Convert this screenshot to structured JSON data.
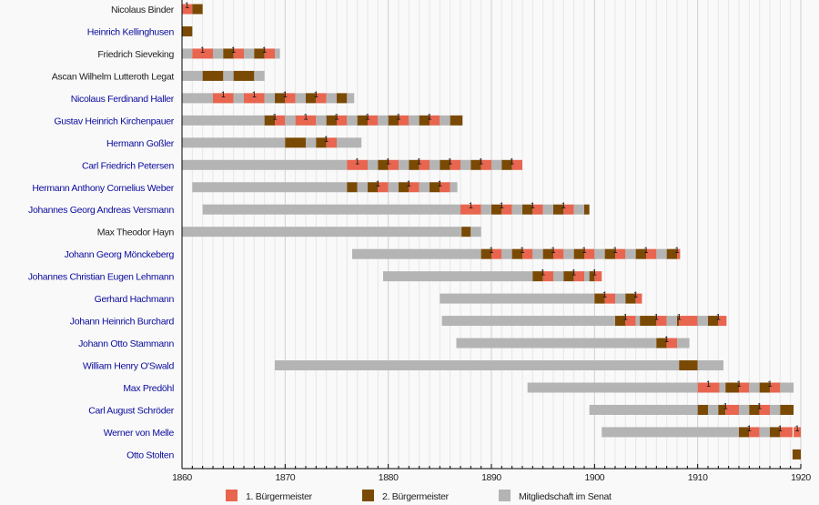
{
  "chart_data": {
    "type": "timeline",
    "title": "",
    "xlim": [
      1860,
      1920
    ],
    "x_ticks": [
      1860,
      1870,
      1880,
      1890,
      1900,
      1910,
      1920
    ],
    "grid": "vertical lines every year",
    "legend": {
      "placement": "bottom",
      "entries": [
        {
          "key": "first",
          "label": "1. Bürgermeister",
          "color": "#e8654f"
        },
        {
          "key": "second",
          "label": "2. Bürgermeister",
          "color": "#7a4a04"
        },
        {
          "key": "senate",
          "label": "Mitgliedschaft im Senat",
          "color": "#b4b4b4"
        }
      ]
    },
    "marker_label": "1",
    "rows": [
      {
        "name": "Nicolaus Binder",
        "link": false,
        "segments": [
          [
            "first",
            1860,
            1861
          ],
          [
            "second",
            1861,
            1862
          ]
        ]
      },
      {
        "name": "Heinrich Kellinghusen",
        "link": true,
        "segments": [
          [
            "second",
            1860,
            1861
          ]
        ]
      },
      {
        "name": "Friedrich Sieveking",
        "link": false,
        "segments": [
          [
            "senate",
            1860,
            1861
          ],
          [
            "first",
            1861,
            1863
          ],
          [
            "senate",
            1863,
            1864
          ],
          [
            "second",
            1864,
            1865
          ],
          [
            "first",
            1865,
            1866
          ],
          [
            "senate",
            1866,
            1867
          ],
          [
            "second",
            1867,
            1868
          ],
          [
            "first",
            1868,
            1869
          ],
          [
            "senate",
            1869,
            1869.5
          ]
        ]
      },
      {
        "name": "Ascan Wilhelm Lutteroth Legat",
        "link": false,
        "segments": [
          [
            "senate",
            1860,
            1862
          ],
          [
            "second",
            1862,
            1864
          ],
          [
            "senate",
            1864,
            1865
          ],
          [
            "second",
            1865,
            1867
          ],
          [
            "senate",
            1867,
            1868
          ]
        ]
      },
      {
        "name": "Nicolaus Ferdinand Haller",
        "link": true,
        "segments": [
          [
            "senate",
            1860,
            1863
          ],
          [
            "first",
            1863,
            1865
          ],
          [
            "senate",
            1865,
            1866
          ],
          [
            "first",
            1866,
            1868
          ],
          [
            "senate",
            1868,
            1869
          ],
          [
            "second",
            1869,
            1870
          ],
          [
            "first",
            1870,
            1871
          ],
          [
            "senate",
            1871,
            1872
          ],
          [
            "second",
            1872,
            1873
          ],
          [
            "first",
            1873,
            1874
          ],
          [
            "senate",
            1874,
            1875
          ],
          [
            "second",
            1875,
            1876
          ],
          [
            "senate",
            1876,
            1876.7
          ]
        ]
      },
      {
        "name": "Gustav Heinrich Kirchenpauer",
        "link": true,
        "segments": [
          [
            "senate",
            1860,
            1868
          ],
          [
            "second",
            1868,
            1869
          ],
          [
            "first",
            1869,
            1870
          ],
          [
            "senate",
            1870,
            1871
          ],
          [
            "first",
            1871,
            1873
          ],
          [
            "senate",
            1873,
            1874
          ],
          [
            "second",
            1874,
            1875
          ],
          [
            "first",
            1875,
            1876
          ],
          [
            "senate",
            1876,
            1877
          ],
          [
            "second",
            1877,
            1878
          ],
          [
            "first",
            1878,
            1879
          ],
          [
            "senate",
            1879,
            1880
          ],
          [
            "second",
            1880,
            1881
          ],
          [
            "first",
            1881,
            1882
          ],
          [
            "senate",
            1882,
            1883
          ],
          [
            "second",
            1883,
            1884
          ],
          [
            "first",
            1884,
            1885
          ],
          [
            "senate",
            1885,
            1886
          ],
          [
            "second",
            1886,
            1887.2
          ]
        ]
      },
      {
        "name": "Hermann Goßler",
        "link": true,
        "segments": [
          [
            "senate",
            1860,
            1870
          ],
          [
            "second",
            1870,
            1872
          ],
          [
            "senate",
            1872,
            1873
          ],
          [
            "second",
            1873,
            1874
          ],
          [
            "first",
            1874,
            1875
          ],
          [
            "senate",
            1875,
            1877.4
          ]
        ]
      },
      {
        "name": "Carl Friedrich Petersen",
        "link": true,
        "segments": [
          [
            "senate",
            1860,
            1876
          ],
          [
            "first",
            1876,
            1878
          ],
          [
            "senate",
            1878,
            1879
          ],
          [
            "second",
            1879,
            1880
          ],
          [
            "first",
            1880,
            1881
          ],
          [
            "senate",
            1881,
            1882
          ],
          [
            "second",
            1882,
            1883
          ],
          [
            "first",
            1883,
            1884
          ],
          [
            "senate",
            1884,
            1885
          ],
          [
            "second",
            1885,
            1886
          ],
          [
            "first",
            1886,
            1887
          ],
          [
            "senate",
            1887,
            1888
          ],
          [
            "second",
            1888,
            1889
          ],
          [
            "first",
            1889,
            1890
          ],
          [
            "senate",
            1890,
            1891
          ],
          [
            "second",
            1891,
            1892
          ],
          [
            "first",
            1892,
            1893
          ]
        ]
      },
      {
        "name": "Hermann Anthony Cornelius Weber",
        "link": true,
        "segments": [
          [
            "senate",
            1861,
            1876
          ],
          [
            "second",
            1876,
            1877
          ],
          [
            "senate",
            1877,
            1878
          ],
          [
            "second",
            1878,
            1879
          ],
          [
            "first",
            1879,
            1880
          ],
          [
            "senate",
            1880,
            1881
          ],
          [
            "second",
            1881,
            1882
          ],
          [
            "first",
            1882,
            1883
          ],
          [
            "senate",
            1883,
            1884
          ],
          [
            "second",
            1884,
            1885
          ],
          [
            "first",
            1885,
            1886
          ],
          [
            "senate",
            1886,
            1886.7
          ]
        ]
      },
      {
        "name": "Johannes Georg Andreas Versmann",
        "link": true,
        "segments": [
          [
            "senate",
            1862,
            1887
          ],
          [
            "first",
            1887,
            1889
          ],
          [
            "senate",
            1889,
            1890
          ],
          [
            "second",
            1890,
            1891
          ],
          [
            "first",
            1891,
            1892
          ],
          [
            "senate",
            1892,
            1893
          ],
          [
            "second",
            1893,
            1894
          ],
          [
            "first",
            1894,
            1895
          ],
          [
            "senate",
            1895,
            1896
          ],
          [
            "second",
            1896,
            1897
          ],
          [
            "first",
            1897,
            1898
          ],
          [
            "senate",
            1898,
            1899
          ],
          [
            "second",
            1899,
            1899.5
          ]
        ]
      },
      {
        "name": "Max Theodor Hayn",
        "link": false,
        "segments": [
          [
            "senate",
            1860,
            1887.1
          ],
          [
            "second",
            1887.1,
            1888
          ],
          [
            "senate",
            1888,
            1889
          ]
        ]
      },
      {
        "name": "Johann Georg Mönckeberg",
        "link": true,
        "segments": [
          [
            "senate",
            1876.5,
            1889
          ],
          [
            "second",
            1889,
            1890
          ],
          [
            "first",
            1890,
            1891
          ],
          [
            "senate",
            1891,
            1892
          ],
          [
            "second",
            1892,
            1893
          ],
          [
            "first",
            1893,
            1894
          ],
          [
            "senate",
            1894,
            1895
          ],
          [
            "second",
            1895,
            1896
          ],
          [
            "first",
            1896,
            1897
          ],
          [
            "senate",
            1897,
            1898
          ],
          [
            "second",
            1898,
            1899
          ],
          [
            "first",
            1899,
            1900
          ],
          [
            "senate",
            1900,
            1901
          ],
          [
            "second",
            1901,
            1902
          ],
          [
            "first",
            1902,
            1903
          ],
          [
            "senate",
            1903,
            1904
          ],
          [
            "second",
            1904,
            1905
          ],
          [
            "first",
            1905,
            1906
          ],
          [
            "senate",
            1906,
            1907
          ],
          [
            "second",
            1907,
            1908
          ],
          [
            "first",
            1908,
            1908.3
          ]
        ]
      },
      {
        "name": "Johannes Christian Eugen Lehmann",
        "link": true,
        "segments": [
          [
            "senate",
            1879.5,
            1894
          ],
          [
            "second",
            1894,
            1895
          ],
          [
            "first",
            1895,
            1896
          ],
          [
            "senate",
            1896,
            1897
          ],
          [
            "second",
            1897,
            1898
          ],
          [
            "first",
            1898,
            1899
          ],
          [
            "senate",
            1899,
            1899.5
          ],
          [
            "second",
            1899.5,
            1900
          ],
          [
            "first",
            1900,
            1900.7
          ]
        ]
      },
      {
        "name": "Gerhard Hachmann",
        "link": true,
        "segments": [
          [
            "senate",
            1885,
            1900
          ],
          [
            "second",
            1900,
            1901
          ],
          [
            "first",
            1901,
            1902
          ],
          [
            "senate",
            1902,
            1903
          ],
          [
            "second",
            1903,
            1904
          ],
          [
            "first",
            1904,
            1904.6
          ]
        ]
      },
      {
        "name": "Johann Heinrich Burchard",
        "link": true,
        "segments": [
          [
            "senate",
            1885.2,
            1902
          ],
          [
            "second",
            1902,
            1903
          ],
          [
            "first",
            1903,
            1904
          ],
          [
            "senate",
            1904,
            1904.4
          ],
          [
            "second",
            1904.4,
            1906
          ],
          [
            "first",
            1906,
            1907
          ],
          [
            "senate",
            1907,
            1908
          ],
          [
            "second",
            1908,
            1908.2
          ],
          [
            "first",
            1908.2,
            1910
          ],
          [
            "senate",
            1910,
            1911
          ],
          [
            "second",
            1911,
            1912
          ],
          [
            "first",
            1912,
            1912.8
          ]
        ]
      },
      {
        "name": "Johann Otto Stammann",
        "link": true,
        "segments": [
          [
            "senate",
            1886.6,
            1906
          ],
          [
            "second",
            1906,
            1907
          ],
          [
            "first",
            1907,
            1908
          ],
          [
            "senate",
            1908,
            1909.2
          ]
        ]
      },
      {
        "name": "William Henry O'Swald",
        "link": true,
        "segments": [
          [
            "senate",
            1869,
            1908.2
          ],
          [
            "second",
            1908.2,
            1910
          ],
          [
            "senate",
            1910,
            1912.5
          ]
        ]
      },
      {
        "name": "Max Predöhl",
        "link": true,
        "segments": [
          [
            "senate",
            1893.5,
            1910
          ],
          [
            "first",
            1910,
            1912.1
          ],
          [
            "senate",
            1912.1,
            1912.7
          ],
          [
            "second",
            1912.7,
            1914
          ],
          [
            "first",
            1914,
            1915
          ],
          [
            "senate",
            1915,
            1916
          ],
          [
            "second",
            1916,
            1917
          ],
          [
            "first",
            1917,
            1918
          ],
          [
            "senate",
            1918,
            1919.3
          ]
        ]
      },
      {
        "name": "Carl August Schröder",
        "link": true,
        "segments": [
          [
            "senate",
            1899.5,
            1910
          ],
          [
            "second",
            1910,
            1911
          ],
          [
            "senate",
            1911,
            1912
          ],
          [
            "second",
            1912,
            1912.7
          ],
          [
            "first",
            1912.7,
            1914
          ],
          [
            "senate",
            1914,
            1915
          ],
          [
            "second",
            1915,
            1916
          ],
          [
            "first",
            1916,
            1917
          ],
          [
            "senate",
            1917,
            1918
          ],
          [
            "second",
            1918,
            1919.3
          ]
        ]
      },
      {
        "name": "Werner von Melle",
        "link": true,
        "segments": [
          [
            "senate",
            1900.7,
            1914
          ],
          [
            "second",
            1914,
            1915
          ],
          [
            "first",
            1915,
            1916
          ],
          [
            "senate",
            1916,
            1917
          ],
          [
            "second",
            1917,
            1918
          ],
          [
            "first",
            1918,
            1919.2
          ],
          [
            "first",
            1919.3,
            1920
          ]
        ]
      },
      {
        "name": "Otto Stolten",
        "link": true,
        "segments": [
          [
            "second",
            1919.2,
            1920
          ]
        ]
      }
    ]
  }
}
